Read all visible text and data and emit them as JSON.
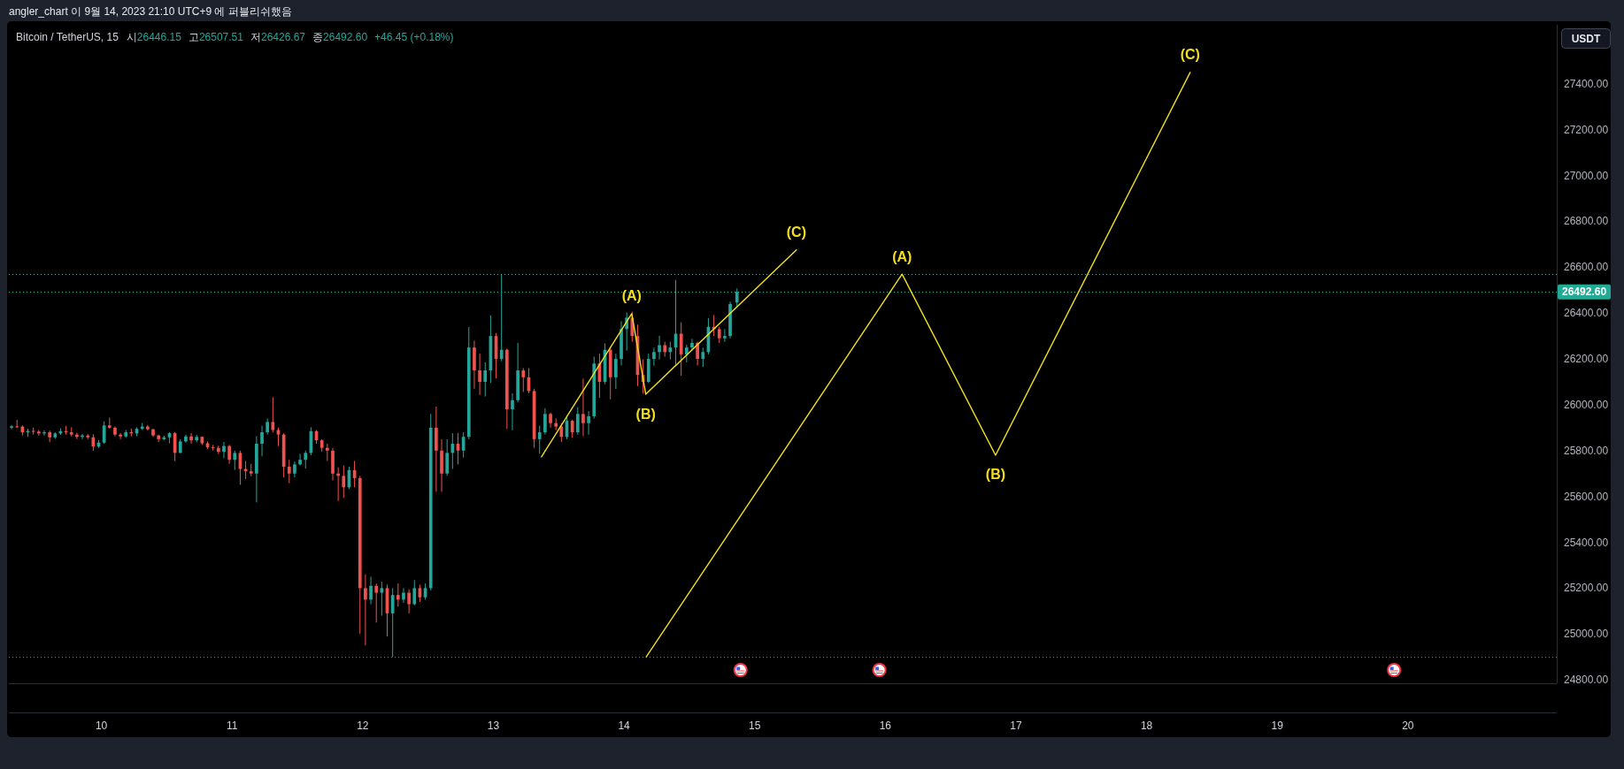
{
  "chart_data": {
    "type": "candlestick",
    "title": "angler_chart 이 9월 14, 2023 21:10 UTC+9 에 퍼블리쉬했음",
    "subtitle": "Bitcoin / TetherUS, 15",
    "ylabel": "USDT",
    "annotations": [
      "시26446.15",
      "고26507.51",
      "저26426.67",
      "종26492.60",
      "+46.45 (+0.18%)",
      {
        "text": "(A)",
        "x": "2023-09-14T01:25",
        "y": 26397
      },
      {
        "text": "(B)",
        "x": "2023-09-14T04:00",
        "y": 26046
      },
      {
        "text": "(C)",
        "x": "2023-09-15T07:40",
        "y": 26676
      },
      {
        "text": "(A)",
        "x": "2023-09-16T03:05",
        "y": 26570
      },
      {
        "text": "(B)",
        "x": "2023-09-16T20:15",
        "y": 25780
      },
      {
        "text": "(C)",
        "x": "2023-09-18T08:00",
        "y": 27450
      }
    ],
    "xlim": [
      "2023-09-09T07:00",
      "2023-09-21T03:20"
    ],
    "ylim": [
      24785,
      27658
    ],
    "xticks": [
      {
        "value": "2023-09-10",
        "label": "10"
      },
      {
        "value": "2023-09-11",
        "label": "11"
      },
      {
        "value": "2023-09-12",
        "label": "12"
      },
      {
        "value": "2023-09-13",
        "label": "13"
      },
      {
        "value": "2023-09-14",
        "label": "14"
      },
      {
        "value": "2023-09-15",
        "label": "15"
      },
      {
        "value": "2023-09-16",
        "label": "16"
      },
      {
        "value": "2023-09-17",
        "label": "17"
      },
      {
        "value": "2023-09-18",
        "label": "18"
      },
      {
        "value": "2023-09-19",
        "label": "19"
      },
      {
        "value": "2023-09-20",
        "label": "20"
      }
    ],
    "yticks": [
      {
        "value": 24800,
        "label": "24800.00"
      },
      {
        "value": 25000,
        "label": "25000.00"
      },
      {
        "value": 25200,
        "label": "25200.00"
      },
      {
        "value": 25400,
        "label": "25400.00"
      },
      {
        "value": 25600,
        "label": "25600.00"
      },
      {
        "value": 25800,
        "label": "25800.00"
      },
      {
        "value": 26000,
        "label": "26000.00"
      },
      {
        "value": 26200,
        "label": "26200.00"
      },
      {
        "value": 26400,
        "label": "26400.00"
      },
      {
        "value": 26600,
        "label": "26600.00"
      },
      {
        "value": 26800,
        "label": "26800.00"
      },
      {
        "value": 27000,
        "label": "27000.00"
      },
      {
        "value": 27200,
        "label": "27200.00"
      },
      {
        "value": 27400,
        "label": "27400.00"
      }
    ],
    "ref_lines": [
      {
        "axis": "y",
        "value": 26570,
        "color": "#6b9e9a",
        "line_style": "dotted"
      },
      {
        "axis": "y",
        "value": 26492.6,
        "label": "26492.60",
        "color": "#22ab94",
        "line_style": "dotted"
      },
      {
        "axis": "y",
        "value": 24900,
        "color": "#787b86",
        "line_style": "dotted"
      }
    ],
    "x": [
      "2023-09-09T07:30",
      "2023-09-09T08:30",
      "2023-09-09T09:30",
      "2023-09-09T10:30",
      "2023-09-09T11:30",
      "2023-09-09T12:30",
      "2023-09-09T13:30",
      "2023-09-09T14:30",
      "2023-09-09T15:30",
      "2023-09-09T16:30",
      "2023-09-09T17:30",
      "2023-09-09T18:30",
      "2023-09-09T19:30",
      "2023-09-09T20:30",
      "2023-09-09T21:30",
      "2023-09-09T22:30",
      "2023-09-09T23:30",
      "2023-09-10T00:30",
      "2023-09-10T01:30",
      "2023-09-10T02:30",
      "2023-09-10T03:30",
      "2023-09-10T04:30",
      "2023-09-10T05:30",
      "2023-09-10T06:30",
      "2023-09-10T07:30",
      "2023-09-10T08:30",
      "2023-09-10T09:30",
      "2023-09-10T10:30",
      "2023-09-10T11:30",
      "2023-09-10T12:30",
      "2023-09-10T13:30",
      "2023-09-10T14:30",
      "2023-09-10T15:30",
      "2023-09-10T16:30",
      "2023-09-10T17:30",
      "2023-09-10T18:30",
      "2023-09-10T19:30",
      "2023-09-10T20:30",
      "2023-09-10T21:30",
      "2023-09-10T22:30",
      "2023-09-10T23:30",
      "2023-09-11T00:30",
      "2023-09-11T01:30",
      "2023-09-11T02:30",
      "2023-09-11T03:30",
      "2023-09-11T04:30",
      "2023-09-11T05:30",
      "2023-09-11T06:30",
      "2023-09-11T07:30",
      "2023-09-11T08:30",
      "2023-09-11T09:30",
      "2023-09-11T10:30",
      "2023-09-11T11:30",
      "2023-09-11T12:30",
      "2023-09-11T13:30",
      "2023-09-11T14:30",
      "2023-09-11T15:30",
      "2023-09-11T16:30",
      "2023-09-11T17:30",
      "2023-09-11T18:30",
      "2023-09-11T19:30",
      "2023-09-11T20:30",
      "2023-09-11T21:30",
      "2023-09-11T22:30",
      "2023-09-11T23:30",
      "2023-09-12T00:30",
      "2023-09-12T01:30",
      "2023-09-12T02:30",
      "2023-09-12T03:30",
      "2023-09-12T04:30",
      "2023-09-12T05:30",
      "2023-09-12T06:30",
      "2023-09-12T07:30",
      "2023-09-12T08:30",
      "2023-09-12T09:30",
      "2023-09-12T10:30",
      "2023-09-12T11:30",
      "2023-09-12T12:30",
      "2023-09-12T13:30",
      "2023-09-12T14:30",
      "2023-09-12T15:30",
      "2023-09-12T16:30",
      "2023-09-12T17:30",
      "2023-09-12T18:30",
      "2023-09-12T19:30",
      "2023-09-12T20:30",
      "2023-09-12T21:30",
      "2023-09-12T22:30",
      "2023-09-12T23:30",
      "2023-09-13T00:30",
      "2023-09-13T01:30",
      "2023-09-13T02:30",
      "2023-09-13T03:30",
      "2023-09-13T04:30",
      "2023-09-13T05:30",
      "2023-09-13T06:30",
      "2023-09-13T07:30",
      "2023-09-13T08:30",
      "2023-09-13T09:30",
      "2023-09-13T10:30",
      "2023-09-13T11:30",
      "2023-09-13T12:30",
      "2023-09-13T13:30",
      "2023-09-13T14:30",
      "2023-09-13T15:30",
      "2023-09-13T16:30",
      "2023-09-13T17:30",
      "2023-09-13T18:30",
      "2023-09-13T19:30",
      "2023-09-13T20:30",
      "2023-09-13T21:30",
      "2023-09-13T22:30",
      "2023-09-13T23:30",
      "2023-09-14T00:30",
      "2023-09-14T01:30",
      "2023-09-14T02:30",
      "2023-09-14T03:30",
      "2023-09-14T04:30",
      "2023-09-14T05:30",
      "2023-09-14T06:30",
      "2023-09-14T07:30",
      "2023-09-14T08:30",
      "2023-09-14T09:30",
      "2023-09-14T10:30",
      "2023-09-14T11:30",
      "2023-09-14T12:30",
      "2023-09-14T13:30",
      "2023-09-14T14:30",
      "2023-09-14T15:30",
      "2023-09-14T16:30",
      "2023-09-14T17:30",
      "2023-09-14T18:30",
      "2023-09-14T19:30",
      "2023-09-14T20:45"
    ],
    "ohlc": [
      [
        25900,
        25912,
        25893,
        25906
      ],
      [
        25906,
        25934,
        25898,
        25905
      ],
      [
        25905,
        25910,
        25866,
        25880
      ],
      [
        25880,
        25895,
        25860,
        25886
      ],
      [
        25886,
        25900,
        25870,
        25883
      ],
      [
        25883,
        25890,
        25865,
        25875
      ],
      [
        25875,
        25888,
        25866,
        25880
      ],
      [
        25880,
        25887,
        25837,
        25858
      ],
      [
        25858,
        25880,
        25852,
        25875
      ],
      [
        25875,
        25897,
        25868,
        25885
      ],
      [
        25885,
        25908,
        25870,
        25880
      ],
      [
        25880,
        25902,
        25862,
        25870
      ],
      [
        25870,
        25878,
        25850,
        25860
      ],
      [
        25860,
        25873,
        25850,
        25866
      ],
      [
        25866,
        25872,
        25850,
        25858
      ],
      [
        25858,
        25872,
        25799,
        25818
      ],
      [
        25818,
        25846,
        25812,
        25835
      ],
      [
        25835,
        25928,
        25830,
        25910
      ],
      [
        25910,
        25944,
        25895,
        25900
      ],
      [
        25900,
        25905,
        25862,
        25870
      ],
      [
        25870,
        25877,
        25850,
        25862
      ],
      [
        25862,
        25890,
        25856,
        25880
      ],
      [
        25880,
        25896,
        25862,
        25875
      ],
      [
        25875,
        25902,
        25863,
        25895
      ],
      [
        25895,
        25921,
        25890,
        25905
      ],
      [
        25905,
        25912,
        25888,
        25893
      ],
      [
        25893,
        25895,
        25860,
        25866
      ],
      [
        25866,
        25870,
        25837,
        25850
      ],
      [
        25850,
        25865,
        25845,
        25858
      ],
      [
        25858,
        25880,
        25832,
        25876
      ],
      [
        25876,
        25880,
        25754,
        25790
      ],
      [
        25790,
        25850,
        25790,
        25840
      ],
      [
        25840,
        25870,
        25835,
        25862
      ],
      [
        25862,
        25876,
        25830,
        25845
      ],
      [
        25845,
        25869,
        25836,
        25860
      ],
      [
        25860,
        25862,
        25825,
        25832
      ],
      [
        25832,
        25840,
        25806,
        25815
      ],
      [
        25815,
        25825,
        25800,
        25812
      ],
      [
        25812,
        25822,
        25786,
        25795
      ],
      [
        25795,
        25838,
        25767,
        25820
      ],
      [
        25820,
        25825,
        25742,
        25760
      ],
      [
        25760,
        25800,
        25716,
        25790
      ],
      [
        25790,
        25800,
        25651,
        25720
      ],
      [
        25720,
        25755,
        25676,
        25710
      ],
      [
        25710,
        25742,
        25688,
        25700
      ],
      [
        25700,
        25863,
        25574,
        25830
      ],
      [
        25830,
        25909,
        25775,
        25880
      ],
      [
        25880,
        25940,
        25870,
        25925
      ],
      [
        25925,
        26033,
        25880,
        25890
      ],
      [
        25890,
        25900,
        25820,
        25870
      ],
      [
        25870,
        25876,
        25683,
        25730
      ],
      [
        25730,
        25760,
        25658,
        25700
      ],
      [
        25700,
        25753,
        25683,
        25740
      ],
      [
        25740,
        25786,
        25735,
        25760
      ],
      [
        25760,
        25800,
        25722,
        25790
      ],
      [
        25790,
        25902,
        25780,
        25885
      ],
      [
        25885,
        25890,
        25830,
        25845
      ],
      [
        25845,
        25850,
        25795,
        25812
      ],
      [
        25812,
        25830,
        25755,
        25800
      ],
      [
        25800,
        25812,
        25670,
        25700
      ],
      [
        25700,
        25727,
        25580,
        25690
      ],
      [
        25690,
        25735,
        25594,
        25640
      ],
      [
        25640,
        25730,
        25632,
        25715
      ],
      [
        25715,
        25755,
        25640,
        25680
      ],
      [
        25680,
        25690,
        25002,
        25200
      ],
      [
        25200,
        25260,
        24950,
        25150
      ],
      [
        25150,
        25250,
        25130,
        25210
      ],
      [
        25210,
        25220,
        25050,
        25180
      ],
      [
        25180,
        25228,
        25080,
        25200
      ],
      [
        25200,
        25215,
        24989,
        25090
      ],
      [
        25090,
        25200,
        24899,
        25170
      ],
      [
        25170,
        25220,
        25120,
        25150
      ],
      [
        25150,
        25200,
        25135,
        25180
      ],
      [
        25180,
        25195,
        25090,
        25130
      ],
      [
        25130,
        25235,
        25125,
        25200
      ],
      [
        25200,
        25215,
        25140,
        25160
      ],
      [
        25160,
        25220,
        25150,
        25200
      ],
      [
        25200,
        25960,
        25190,
        25900
      ],
      [
        25900,
        25992,
        25620,
        25800
      ],
      [
        25800,
        25850,
        25620,
        25700
      ],
      [
        25700,
        25850,
        25690,
        25790
      ],
      [
        25790,
        25876,
        25720,
        25830
      ],
      [
        25830,
        25876,
        25740,
        25800
      ],
      [
        25800,
        25880,
        25770,
        25860
      ],
      [
        25860,
        26339,
        25850,
        26250
      ],
      [
        26250,
        26280,
        26070,
        26150
      ],
      [
        26150,
        26223,
        26043,
        26100
      ],
      [
        26100,
        26185,
        26036,
        26150
      ],
      [
        26150,
        26390,
        26095,
        26300
      ],
      [
        26300,
        26313,
        26115,
        26200
      ],
      [
        26200,
        26570,
        26190,
        26240
      ],
      [
        26240,
        26245,
        25895,
        25980
      ],
      [
        25980,
        26050,
        25889,
        26020
      ],
      [
        26020,
        26270,
        26010,
        26150
      ],
      [
        26150,
        26160,
        26056,
        26120
      ],
      [
        26120,
        26160,
        26050,
        26060
      ],
      [
        26060,
        26070,
        25812,
        25850
      ],
      [
        25850,
        25909,
        25786,
        25880
      ],
      [
        25880,
        25985,
        25870,
        25960
      ],
      [
        25960,
        25966,
        25900,
        25920
      ],
      [
        25920,
        25940,
        25889,
        25905
      ],
      [
        25905,
        25920,
        25838,
        25860
      ],
      [
        25860,
        25953,
        25850,
        25930
      ],
      [
        25930,
        25935,
        25857,
        25880
      ],
      [
        25880,
        25990,
        25870,
        25960
      ],
      [
        25960,
        26114,
        25863,
        25920
      ],
      [
        25920,
        25972,
        25870,
        25950
      ],
      [
        25950,
        26210,
        25940,
        26180
      ],
      [
        26180,
        26223,
        26030,
        26100
      ],
      [
        26100,
        26268,
        26090,
        26240
      ],
      [
        26240,
        26250,
        26024,
        26120
      ],
      [
        26120,
        26223,
        26069,
        26200
      ],
      [
        26200,
        26365,
        26172,
        26330
      ],
      [
        26330,
        26403,
        26236,
        26380
      ],
      [
        26380,
        26406,
        26275,
        26300
      ],
      [
        26300,
        26350,
        26082,
        26130
      ],
      [
        26130,
        26198,
        26050,
        26100
      ],
      [
        26100,
        26223,
        26095,
        26200
      ],
      [
        26200,
        26249,
        26170,
        26230
      ],
      [
        26230,
        26301,
        26198,
        26260
      ],
      [
        26260,
        26275,
        26210,
        26230
      ],
      [
        26230,
        26275,
        26198,
        26250
      ],
      [
        26250,
        26545,
        26172,
        26310
      ],
      [
        26310,
        26360,
        26127,
        26220
      ],
      [
        26220,
        26262,
        26185,
        26250
      ],
      [
        26250,
        26288,
        26237,
        26270
      ],
      [
        26270,
        26275,
        26172,
        26200
      ],
      [
        26200,
        26249,
        26165,
        26230
      ],
      [
        26230,
        26378,
        26220,
        26340
      ],
      [
        26340,
        26391,
        26300,
        26330
      ],
      [
        26330,
        26340,
        26270,
        26290
      ],
      [
        26290,
        26330,
        26275,
        26300
      ],
      [
        26300,
        26450,
        26290,
        26440
      ],
      [
        26446.15,
        26507.51,
        26426.67,
        26492.6
      ]
    ],
    "colors": [
      "#26a69a",
      "#ef5350",
      "#ef5350",
      "#26a69a",
      "#ef5350",
      "#ef5350",
      "#26a69a",
      "#ef5350",
      "#26a69a",
      "#26a69a",
      "#ef5350",
      "#ef5350",
      "#ef5350",
      "#26a69a",
      "#ef5350",
      "#ef5350",
      "#26a69a",
      "#26a69a",
      "#ef5350",
      "#ef5350",
      "#ef5350",
      "#26a69a",
      "#ef5350",
      "#26a69a",
      "#26a69a",
      "#ef5350",
      "#ef5350",
      "#ef5350",
      "#26a69a",
      "#26a69a",
      "#ef5350",
      "#26a69a",
      "#26a69a",
      "#ef5350",
      "#26a69a",
      "#ef5350",
      "#ef5350",
      "#ef5350",
      "#ef5350",
      "#26a69a",
      "#ef5350",
      "#26a69a",
      "#ef5350",
      "#ef5350",
      "#ef5350",
      "#26a69a",
      "#26a69a",
      "#26a69a",
      "#ef5350",
      "#ef5350",
      "#ef5350",
      "#ef5350",
      "#26a69a",
      "#26a69a",
      "#26a69a",
      "#26a69a",
      "#ef5350",
      "#ef5350",
      "#ef5350",
      "#ef5350",
      "#ef5350",
      "#ef5350",
      "#26a69a",
      "#ef5350",
      "#ef5350",
      "#ef5350",
      "#26a69a",
      "#ef5350",
      "#26a69a",
      "#ef5350",
      "#26a69a",
      "#ef5350",
      "#26a69a",
      "#ef5350",
      "#26a69a",
      "#ef5350",
      "#26a69a",
      "#26a69a",
      "#ef5350",
      "#ef5350",
      "#26a69a",
      "#26a69a",
      "#ef5350",
      "#26a69a",
      "#26a69a",
      "#ef5350",
      "#ef5350",
      "#26a69a",
      "#26a69a",
      "#ef5350",
      "#26a69a",
      "#ef5350",
      "#26a69a",
      "#26a69a",
      "#ef5350",
      "#ef5350",
      "#ef5350",
      "#26a69a",
      "#26a69a",
      "#ef5350",
      "#ef5350",
      "#ef5350",
      "#26a69a",
      "#ef5350",
      "#26a69a",
      "#ef5350",
      "#26a69a",
      "#26a69a",
      "#ef5350",
      "#26a69a",
      "#ef5350",
      "#26a69a",
      "#26a69a",
      "#26a69a",
      "#ef5350",
      "#ef5350",
      "#ef5350",
      "#26a69a",
      "#26a69a",
      "#26a69a",
      "#ef5350",
      "#26a69a",
      "#26a69a",
      "#ef5350",
      "#26a69a",
      "#26a69a",
      "#ef5350",
      "#26a69a",
      "#26a69a",
      "#ef5350",
      "#ef5350",
      "#26a69a",
      "#26a69a",
      "#26a69a"
    ],
    "series": [
      {
        "type": "line",
        "color": "#f2df1d",
        "x": [
          "2023-09-13T08:50",
          "2023-09-14T01:25",
          "2023-09-14T04:00",
          "2023-09-15T07:40"
        ],
        "values": [
          25773,
          26397,
          26046,
          26676
        ]
      },
      {
        "type": "line",
        "color": "#f2df1d",
        "x": [
          "2023-09-14T04:05",
          "2023-09-16T03:05",
          "2023-09-16T20:15",
          "2023-09-18T08:00"
        ],
        "values": [
          24900,
          26570,
          25780,
          27450
        ]
      }
    ]
  }
}
